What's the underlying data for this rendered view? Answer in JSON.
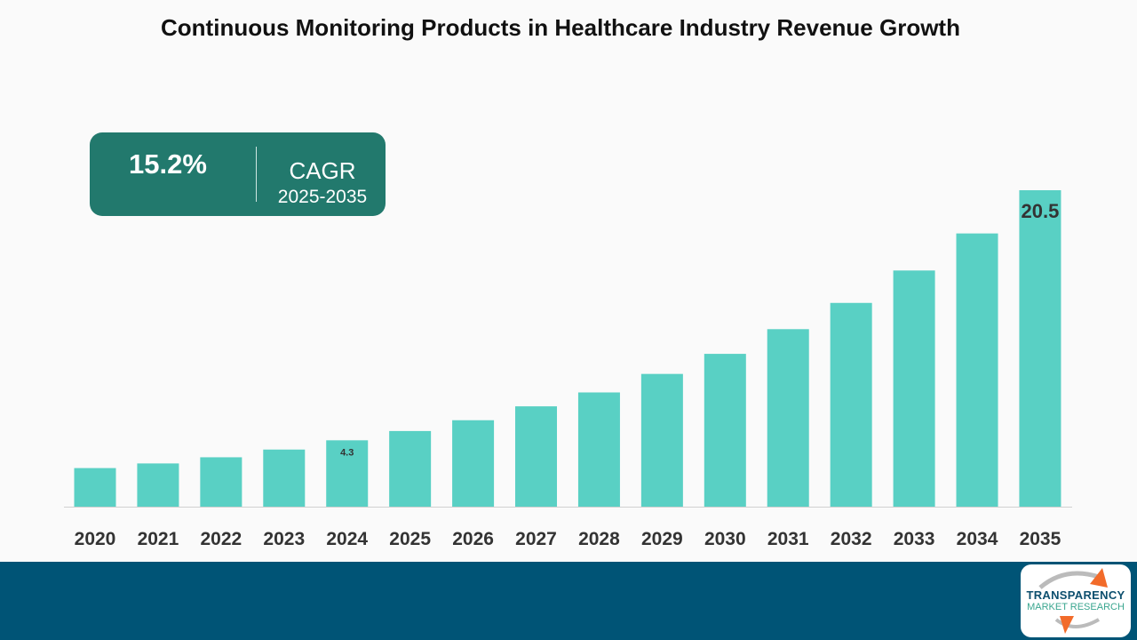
{
  "chart_data": {
    "type": "bar",
    "title": "Continuous Monitoring Products in Healthcare Industry Revenue Growth",
    "categories": [
      "2020",
      "2021",
      "2022",
      "2023",
      "2024",
      "2025",
      "2026",
      "2027",
      "2028",
      "2029",
      "2030",
      "2031",
      "2032",
      "2033",
      "2034",
      "2035"
    ],
    "values": [
      2.5,
      2.8,
      3.2,
      3.7,
      4.3,
      4.9,
      5.6,
      6.5,
      7.4,
      8.6,
      9.9,
      11.5,
      13.2,
      15.3,
      17.7,
      20.5
    ],
    "data_labels": {
      "2024": "4.3",
      "2035": "20.5"
    },
    "xlabel": "",
    "ylabel": "",
    "ylim": [
      0,
      20.5
    ],
    "grid": false,
    "bar_color": "#59d0c4"
  },
  "cagr": {
    "value": "15.2%",
    "label": "CAGR",
    "period": "2025-2035",
    "color": "#22796d"
  },
  "logo": {
    "line1": "TRANSPARENCY",
    "line2": "MARKET RESEARCH"
  },
  "footer_color": "#005476"
}
